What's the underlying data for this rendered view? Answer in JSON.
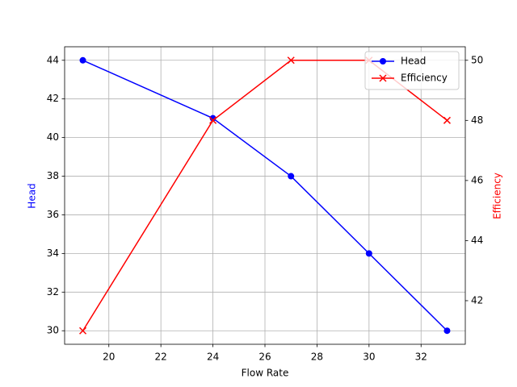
{
  "chart_data": {
    "type": "line",
    "x": [
      19,
      24,
      27,
      30,
      33
    ],
    "xlabel": "Flow Rate",
    "ylabel": "Head",
    "y2label": "Efficiency",
    "series": [
      {
        "name": "Head",
        "color": "#0000ff",
        "marker": "o",
        "values": [
          44,
          41,
          38,
          34,
          30
        ]
      },
      {
        "name": "Efficiency",
        "color": "#ff0000",
        "marker": "x",
        "axis": "y2",
        "values": [
          41,
          48,
          50,
          50,
          48
        ]
      }
    ],
    "xlim": [
      18.3,
      33.7
    ],
    "xticks": [
      20,
      22,
      24,
      26,
      28,
      30,
      32
    ],
    "ylim": [
      29.3,
      44.7
    ],
    "yticks": [
      30,
      32,
      34,
      36,
      38,
      40,
      42,
      44
    ],
    "y2lim": [
      40.55,
      50.45
    ],
    "y2ticks": [
      42,
      44,
      46,
      48,
      50
    ],
    "grid": true,
    "legend": "upper right"
  }
}
